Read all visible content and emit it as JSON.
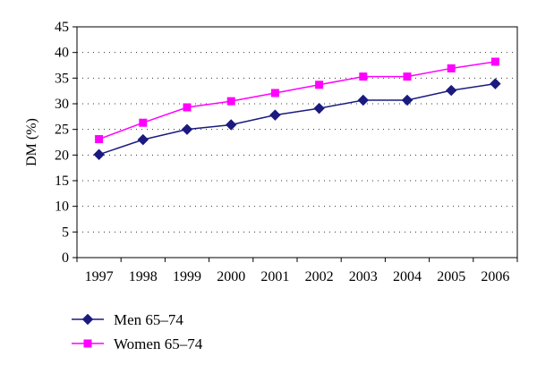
{
  "chart_data": {
    "type": "line",
    "title": "",
    "xlabel": "",
    "ylabel": "DM (%)",
    "categories": [
      "1997",
      "1998",
      "1999",
      "2000",
      "2001",
      "2002",
      "2003",
      "2004",
      "2005",
      "2006"
    ],
    "ylim": [
      0,
      45
    ],
    "yticks": [
      0,
      5,
      10,
      15,
      20,
      25,
      30,
      35,
      40,
      45
    ],
    "grid": "horizontal dotted",
    "legend": "bottom-left",
    "series": [
      {
        "name": "Men 65–74",
        "values": [
          20.1,
          23.0,
          25.0,
          25.9,
          27.8,
          29.1,
          30.7,
          30.7,
          32.6,
          33.9
        ],
        "color": "#1a1a80",
        "marker": "diamond"
      },
      {
        "name": "Women 65–74",
        "values": [
          23.1,
          26.3,
          29.3,
          30.5,
          32.1,
          33.7,
          35.3,
          35.3,
          36.9,
          38.2
        ],
        "color": "#ff00ff",
        "marker": "square"
      }
    ]
  }
}
